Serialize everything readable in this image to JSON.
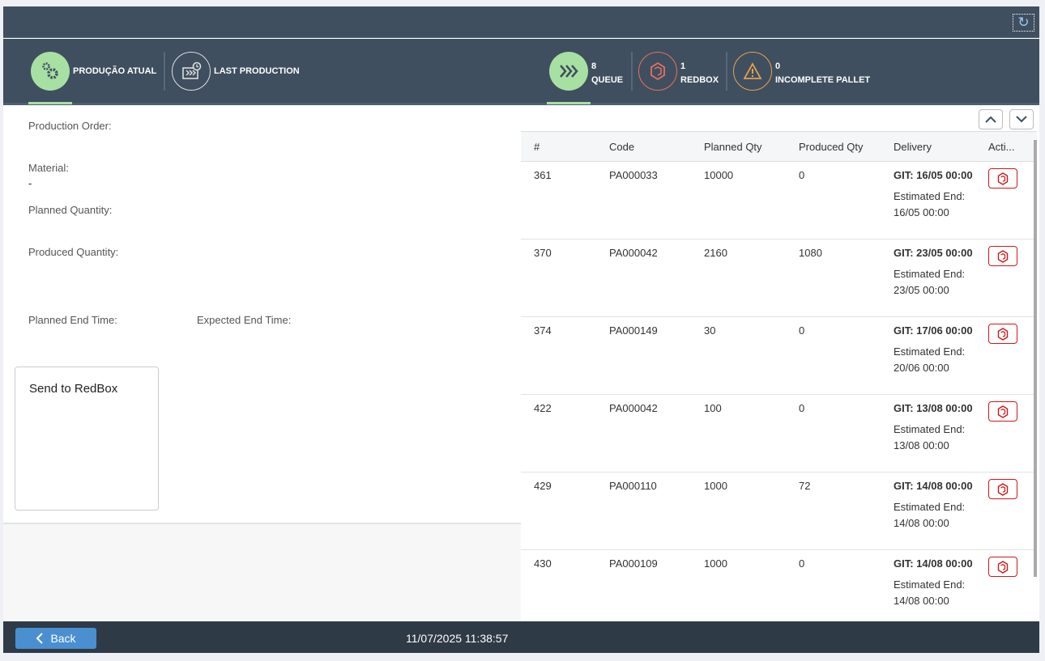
{
  "header": {
    "refresh_icon": "refresh-icon"
  },
  "tabs": [
    {
      "label": "PRODUÇÃO ATUAL",
      "icon": "gears-icon",
      "active": true
    },
    {
      "label": "LAST PRODUCTION",
      "icon": "production-history-icon"
    }
  ],
  "status": [
    {
      "count": "8",
      "label": "QUEUE",
      "icon": "chevrons-right-icon",
      "color": "#a8e0a3",
      "active": true
    },
    {
      "count": "1",
      "label": "REDBOX",
      "icon": "box-icon",
      "color": "#e8705e"
    },
    {
      "count": "0",
      "label": "INCOMPLETE PALLET",
      "icon": "warning-icon",
      "color": "#e8a04d"
    }
  ],
  "details": {
    "production_order": "Production Order:",
    "material": "Material:",
    "material_value": "-",
    "planned_quantity": "Planned Quantity:",
    "produced_quantity": "Produced Quantity:",
    "planned_end_time": "Planned End Time:",
    "expected_end_time": "Expected End Time:",
    "send_to_redbox": "Send to RedBox"
  },
  "queue_table": {
    "columns": [
      "#",
      "Code",
      "Planned Qty",
      "Produced Qty",
      "Delivery",
      "Acti..."
    ],
    "rows": [
      {
        "id": "361",
        "code": "PA000033",
        "planned": "10000",
        "produced": "0",
        "git": "GIT: 16/05 00:00",
        "est_label": "Estimated End:",
        "est": "16/05 00:00"
      },
      {
        "id": "370",
        "code": "PA000042",
        "planned": "2160",
        "produced": "1080",
        "git": "GIT: 23/05 00:00",
        "est_label": "Estimated End:",
        "est": "23/05 00:00"
      },
      {
        "id": "374",
        "code": "PA000149",
        "planned": "30",
        "produced": "0",
        "git": "GIT: 17/06 00:00",
        "est_label": "Estimated End:",
        "est": "20/06 00:00"
      },
      {
        "id": "422",
        "code": "PA000042",
        "planned": "100",
        "produced": "0",
        "git": "GIT: 13/08 00:00",
        "est_label": "Estimated End:",
        "est": "13/08 00:00"
      },
      {
        "id": "429",
        "code": "PA000110",
        "planned": "1000",
        "produced": "72",
        "git": "GIT: 14/08 00:00",
        "est_label": "Estimated End:",
        "est": "14/08 00:00"
      },
      {
        "id": "430",
        "code": "PA000109",
        "planned": "1000",
        "produced": "0",
        "git": "GIT: 14/08 00:00",
        "est_label": "Estimated End:",
        "est": "14/08 00:00"
      }
    ]
  },
  "footer": {
    "back_label": "Back",
    "datetime": "11/07/2025 11:38:57"
  }
}
